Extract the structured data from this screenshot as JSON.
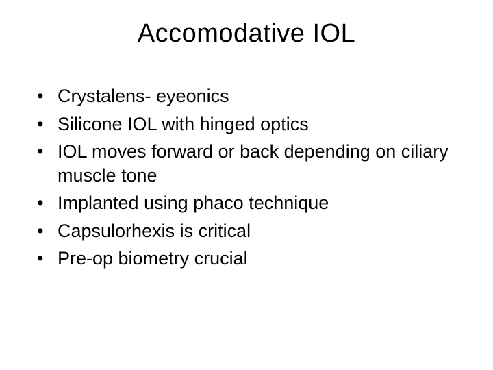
{
  "slide": {
    "title": "Accomodative IOL",
    "bullets": [
      "Crystalens- eyeonics",
      "Silicone IOL with hinged optics",
      "IOL moves forward or back depending on ciliary muscle tone",
      "Implanted using phaco technique",
      "Capsulorhexis is critical",
      "Pre-op biometry crucial"
    ],
    "title_fontsize": 38,
    "bullet_fontsize": 27,
    "background_color": "#ffffff",
    "text_color": "#000000",
    "font_family": "Arial"
  }
}
